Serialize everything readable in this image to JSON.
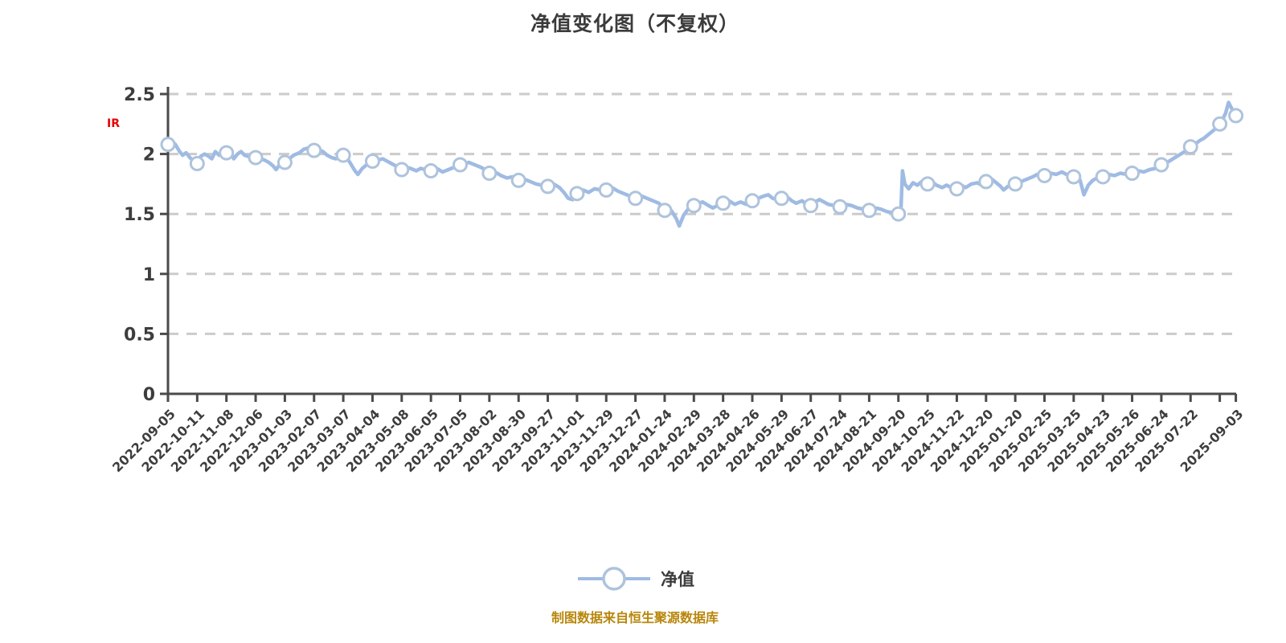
{
  "title": "净值变化图（不复权）",
  "y_axis_unit_label": "IR",
  "legend": {
    "label": "净值"
  },
  "footer": "制图数据来自恒生聚源数据库",
  "colors": {
    "background": "#ffffff",
    "line": "#9fbbe3",
    "marker_fill": "#ffffff",
    "marker_stroke": "#aec3dc",
    "axis": "#4a4a4a",
    "grid": "#cbcbcb",
    "title_text": "#3b3b3b",
    "tick_text": "#3d3d3d",
    "red_label": "#e60000",
    "footer_text": "#b8860b"
  },
  "chart_data": {
    "type": "line",
    "title": "净值变化图（不复权）",
    "series_name": "净值",
    "xlabel": "",
    "ylabel": "",
    "ylim": [
      0,
      2.5
    ],
    "yticks": [
      0,
      0.5,
      1,
      1.5,
      2,
      2.5
    ],
    "grid": "horizontal-dashed",
    "legend_position": "bottom-center",
    "categories": [
      "2022-09-05",
      "2022-10-11",
      "2022-11-08",
      "2022-12-06",
      "2023-01-03",
      "2023-02-07",
      "2023-03-07",
      "2023-04-04",
      "2023-05-08",
      "2023-06-05",
      "2023-07-05",
      "2023-08-02",
      "2023-08-30",
      "2023-09-27",
      "2023-11-01",
      "2023-11-29",
      "2023-12-27",
      "2024-01-24",
      "2024-02-29",
      "2024-03-28",
      "2024-04-26",
      "2024-05-29",
      "2024-06-27",
      "2024-07-24",
      "2024-08-21",
      "2024-09-20",
      "2024-10-25",
      "2024-11-22",
      "2024-12-20",
      "2025-01-20",
      "2025-02-25",
      "2025-03-25",
      "2025-04-23",
      "2025-05-26",
      "2025-06-24",
      "2025-07-22",
      "2025-09-03"
    ],
    "category_positions": [
      0,
      1,
      2,
      3,
      4,
      5,
      6,
      7,
      8,
      9,
      10,
      11,
      12,
      13,
      14,
      15,
      16,
      17,
      18,
      19,
      20,
      21,
      22,
      23,
      24,
      25,
      26,
      27,
      28,
      29,
      30,
      31,
      32,
      33,
      34,
      35,
      36.55
    ],
    "values": [
      2.08,
      1.92,
      2.01,
      1.97,
      1.93,
      2.03,
      1.99,
      1.94,
      1.87,
      1.86,
      1.91,
      1.84,
      1.78,
      1.73,
      1.67,
      1.7,
      1.63,
      1.53,
      1.57,
      1.59,
      1.61,
      1.63,
      1.57,
      1.56,
      1.53,
      1.5,
      1.75,
      1.71,
      1.77,
      1.75,
      1.82,
      1.81,
      1.81,
      1.84,
      1.91,
      2.06,
      2.32
    ],
    "markers": [
      [
        0,
        2.08
      ],
      [
        1,
        1.92
      ],
      [
        2,
        2.01
      ],
      [
        3,
        1.97
      ],
      [
        4,
        1.93
      ],
      [
        5,
        2.03
      ],
      [
        6,
        1.99
      ],
      [
        7,
        1.94
      ],
      [
        8,
        1.87
      ],
      [
        9,
        1.86
      ],
      [
        10,
        1.91
      ],
      [
        11,
        1.84
      ],
      [
        12,
        1.78
      ],
      [
        13,
        1.73
      ],
      [
        14,
        1.67
      ],
      [
        15,
        1.7
      ],
      [
        16,
        1.63
      ],
      [
        17,
        1.53
      ],
      [
        18,
        1.57
      ],
      [
        19,
        1.59
      ],
      [
        20,
        1.61
      ],
      [
        21,
        1.63
      ],
      [
        22,
        1.57
      ],
      [
        23,
        1.56
      ],
      [
        24,
        1.53
      ],
      [
        25,
        1.5
      ],
      [
        26,
        1.75
      ],
      [
        27,
        1.71
      ],
      [
        28,
        1.77
      ],
      [
        29,
        1.75
      ],
      [
        30,
        1.82
      ],
      [
        31,
        1.81
      ],
      [
        32,
        1.81
      ],
      [
        33,
        1.84
      ],
      [
        34,
        1.91
      ],
      [
        35,
        2.06
      ],
      [
        36,
        2.25
      ],
      [
        36.55,
        2.32
      ]
    ],
    "line_points": [
      [
        0,
        2.08
      ],
      [
        0.12,
        2.11
      ],
      [
        0.25,
        2.08
      ],
      [
        0.4,
        2.02
      ],
      [
        0.5,
        1.99
      ],
      [
        0.62,
        2.01
      ],
      [
        0.75,
        1.97
      ],
      [
        0.88,
        1.94
      ],
      [
        1,
        1.92
      ],
      [
        1.12,
        1.98
      ],
      [
        1.25,
        2.0
      ],
      [
        1.4,
        1.98
      ],
      [
        1.5,
        1.96
      ],
      [
        1.62,
        2.02
      ],
      [
        1.75,
        1.99
      ],
      [
        1.88,
        2.0
      ],
      [
        2,
        2.01
      ],
      [
        2.12,
        2.04
      ],
      [
        2.25,
        1.96
      ],
      [
        2.38,
        2.0
      ],
      [
        2.5,
        2.02
      ],
      [
        2.62,
        1.99
      ],
      [
        2.75,
        1.98
      ],
      [
        2.88,
        1.99
      ],
      [
        3,
        1.97
      ],
      [
        3.15,
        1.96
      ],
      [
        3.3,
        1.95
      ],
      [
        3.45,
        1.93
      ],
      [
        3.6,
        1.9
      ],
      [
        3.7,
        1.87
      ],
      [
        3.85,
        1.92
      ],
      [
        4,
        1.93
      ],
      [
        4.15,
        1.96
      ],
      [
        4.3,
        1.99
      ],
      [
        4.5,
        2.01
      ],
      [
        4.65,
        2.04
      ],
      [
        4.8,
        2.05
      ],
      [
        5,
        2.03
      ],
      [
        5.15,
        2.04
      ],
      [
        5.3,
        2.02
      ],
      [
        5.45,
        1.99
      ],
      [
        5.6,
        1.97
      ],
      [
        5.75,
        1.96
      ],
      [
        5.88,
        1.98
      ],
      [
        6,
        1.99
      ],
      [
        6.12,
        1.97
      ],
      [
        6.25,
        1.92
      ],
      [
        6.4,
        1.86
      ],
      [
        6.5,
        1.83
      ],
      [
        6.65,
        1.88
      ],
      [
        6.8,
        1.91
      ],
      [
        7,
        1.94
      ],
      [
        7.2,
        1.95
      ],
      [
        7.35,
        1.96
      ],
      [
        7.5,
        1.94
      ],
      [
        7.65,
        1.92
      ],
      [
        7.8,
        1.9
      ],
      [
        8,
        1.87
      ],
      [
        8.15,
        1.89
      ],
      [
        8.3,
        1.88
      ],
      [
        8.5,
        1.86
      ],
      [
        8.65,
        1.88
      ],
      [
        8.8,
        1.87
      ],
      [
        9,
        1.86
      ],
      [
        9.2,
        1.88
      ],
      [
        9.4,
        1.85
      ],
      [
        9.6,
        1.87
      ],
      [
        9.8,
        1.89
      ],
      [
        10,
        1.91
      ],
      [
        10.15,
        1.92
      ],
      [
        10.3,
        1.93
      ],
      [
        10.5,
        1.91
      ],
      [
        10.7,
        1.89
      ],
      [
        10.85,
        1.87
      ],
      [
        11,
        1.84
      ],
      [
        11.2,
        1.85
      ],
      [
        11.4,
        1.82
      ],
      [
        11.6,
        1.8
      ],
      [
        11.8,
        1.81
      ],
      [
        12,
        1.78
      ],
      [
        12.2,
        1.79
      ],
      [
        12.4,
        1.77
      ],
      [
        12.6,
        1.75
      ],
      [
        12.8,
        1.74
      ],
      [
        13,
        1.73
      ],
      [
        13.2,
        1.75
      ],
      [
        13.4,
        1.72
      ],
      [
        13.55,
        1.68
      ],
      [
        13.7,
        1.63
      ],
      [
        13.85,
        1.62
      ],
      [
        14,
        1.67
      ],
      [
        14.2,
        1.7
      ],
      [
        14.4,
        1.68
      ],
      [
        14.6,
        1.71
      ],
      [
        14.8,
        1.7
      ],
      [
        15,
        1.7
      ],
      [
        15.2,
        1.72
      ],
      [
        15.4,
        1.69
      ],
      [
        15.6,
        1.67
      ],
      [
        15.8,
        1.65
      ],
      [
        16,
        1.63
      ],
      [
        16.2,
        1.65
      ],
      [
        16.4,
        1.63
      ],
      [
        16.6,
        1.61
      ],
      [
        16.8,
        1.59
      ],
      [
        17,
        1.53
      ],
      [
        17.12,
        1.56
      ],
      [
        17.25,
        1.52
      ],
      [
        17.4,
        1.46
      ],
      [
        17.5,
        1.4
      ],
      [
        17.65,
        1.49
      ],
      [
        17.8,
        1.54
      ],
      [
        18,
        1.57
      ],
      [
        18.15,
        1.59
      ],
      [
        18.3,
        1.6
      ],
      [
        18.5,
        1.57
      ],
      [
        18.65,
        1.55
      ],
      [
        18.8,
        1.57
      ],
      [
        19,
        1.59
      ],
      [
        19.2,
        1.61
      ],
      [
        19.4,
        1.58
      ],
      [
        19.6,
        1.6
      ],
      [
        19.8,
        1.58
      ],
      [
        20,
        1.61
      ],
      [
        20.2,
        1.63
      ],
      [
        20.4,
        1.65
      ],
      [
        20.55,
        1.66
      ],
      [
        20.7,
        1.63
      ],
      [
        20.85,
        1.62
      ],
      [
        21,
        1.63
      ],
      [
        21.2,
        1.64
      ],
      [
        21.35,
        1.61
      ],
      [
        21.5,
        1.59
      ],
      [
        21.7,
        1.61
      ],
      [
        21.85,
        1.58
      ],
      [
        22,
        1.57
      ],
      [
        22.15,
        1.6
      ],
      [
        22.3,
        1.62
      ],
      [
        22.45,
        1.6
      ],
      [
        22.6,
        1.58
      ],
      [
        22.8,
        1.57
      ],
      [
        23,
        1.56
      ],
      [
        23.2,
        1.58
      ],
      [
        23.4,
        1.57
      ],
      [
        23.6,
        1.55
      ],
      [
        23.8,
        1.54
      ],
      [
        24,
        1.53
      ],
      [
        24.2,
        1.55
      ],
      [
        24.4,
        1.54
      ],
      [
        24.6,
        1.52
      ],
      [
        24.8,
        1.51
      ],
      [
        25,
        1.5
      ],
      [
        25.08,
        1.49
      ],
      [
        25.14,
        1.86
      ],
      [
        25.22,
        1.75
      ],
      [
        25.35,
        1.71
      ],
      [
        25.5,
        1.76
      ],
      [
        25.65,
        1.74
      ],
      [
        25.8,
        1.77
      ],
      [
        26,
        1.75
      ],
      [
        26.15,
        1.77
      ],
      [
        26.3,
        1.74
      ],
      [
        26.5,
        1.72
      ],
      [
        26.65,
        1.74
      ],
      [
        26.8,
        1.72
      ],
      [
        27,
        1.71
      ],
      [
        27.15,
        1.74
      ],
      [
        27.3,
        1.72
      ],
      [
        27.5,
        1.75
      ],
      [
        27.7,
        1.76
      ],
      [
        27.85,
        1.74
      ],
      [
        28,
        1.77
      ],
      [
        28.2,
        1.79
      ],
      [
        28.35,
        1.76
      ],
      [
        28.5,
        1.73
      ],
      [
        28.6,
        1.7
      ],
      [
        28.75,
        1.73
      ],
      [
        29,
        1.75
      ],
      [
        29.2,
        1.77
      ],
      [
        29.4,
        1.79
      ],
      [
        29.6,
        1.81
      ],
      [
        29.75,
        1.83
      ],
      [
        29.9,
        1.81
      ],
      [
        30,
        1.82
      ],
      [
        30.2,
        1.84
      ],
      [
        30.4,
        1.83
      ],
      [
        30.6,
        1.85
      ],
      [
        30.75,
        1.83
      ],
      [
        30.9,
        1.82
      ],
      [
        31,
        1.81
      ],
      [
        31.1,
        1.83
      ],
      [
        31.22,
        1.78
      ],
      [
        31.35,
        1.66
      ],
      [
        31.5,
        1.74
      ],
      [
        31.65,
        1.78
      ],
      [
        31.8,
        1.8
      ],
      [
        32,
        1.81
      ],
      [
        32.2,
        1.83
      ],
      [
        32.4,
        1.82
      ],
      [
        32.6,
        1.84
      ],
      [
        32.8,
        1.83
      ],
      [
        33,
        1.84
      ],
      [
        33.2,
        1.86
      ],
      [
        33.4,
        1.85
      ],
      [
        33.6,
        1.87
      ],
      [
        33.8,
        1.88
      ],
      [
        34,
        1.91
      ],
      [
        34.2,
        1.93
      ],
      [
        34.4,
        1.96
      ],
      [
        34.6,
        1.99
      ],
      [
        34.8,
        2.02
      ],
      [
        35,
        2.06
      ],
      [
        35.15,
        2.08
      ],
      [
        35.3,
        2.11
      ],
      [
        35.45,
        2.13
      ],
      [
        35.6,
        2.16
      ],
      [
        35.75,
        2.19
      ],
      [
        35.9,
        2.22
      ],
      [
        36,
        2.25
      ],
      [
        36.1,
        2.29
      ],
      [
        36.2,
        2.34
      ],
      [
        36.3,
        2.43
      ],
      [
        36.45,
        2.36
      ],
      [
        36.55,
        2.32
      ]
    ]
  }
}
